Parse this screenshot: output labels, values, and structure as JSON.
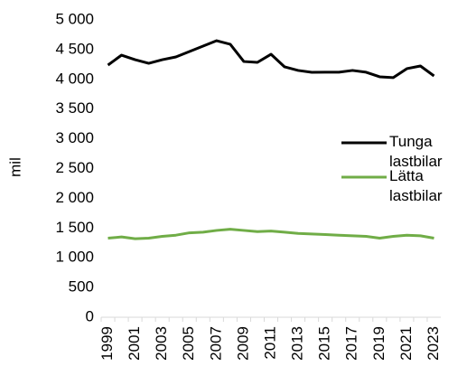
{
  "chart_data": {
    "type": "line",
    "y_label": "mil",
    "categories": [
      "1999",
      null,
      "2001",
      null,
      "2003",
      null,
      "2005",
      null,
      "2007",
      null,
      "2009",
      null,
      "2011",
      null,
      "2013",
      null,
      "2015",
      null,
      "2017",
      null,
      "2019",
      null,
      "2021",
      null,
      "2023"
    ],
    "series": [
      {
        "name": "Tunga lastbilar",
        "color": "#000000",
        "values": [
          4240,
          4407,
          4331,
          4270,
          4330,
          4377,
          4468,
          4559,
          4650,
          4590,
          4300,
          4286,
          4422,
          4210,
          4150,
          4119,
          4120,
          4120,
          4150,
          4120,
          4043,
          4030,
          4180,
          4225,
          4058
        ]
      },
      {
        "name": "Lätta lastbilar",
        "color": "#70ad47",
        "values": [
          1330,
          1350,
          1320,
          1330,
          1360,
          1380,
          1420,
          1430,
          1460,
          1480,
          1460,
          1440,
          1450,
          1430,
          1410,
          1400,
          1390,
          1380,
          1370,
          1360,
          1330,
          1360,
          1380,
          1370,
          1330
        ]
      }
    ],
    "ylim": [
      0,
      5000
    ],
    "yticks": [
      0,
      500,
      {
        "value": 1000,
        "label": "1 000"
      },
      {
        "value": 1500,
        "label": "1 500"
      },
      {
        "value": 2000,
        "label": "2 000"
      },
      {
        "value": 2500,
        "label": "2 500"
      },
      {
        "value": 3000,
        "label": "3 000"
      },
      {
        "value": 3500,
        "label": "3 500"
      },
      {
        "value": 4000,
        "label": "4 000"
      },
      {
        "value": 4500,
        "label": "4 500"
      },
      {
        "value": 5000,
        "label": "5 000"
      }
    ],
    "legend": "right"
  }
}
